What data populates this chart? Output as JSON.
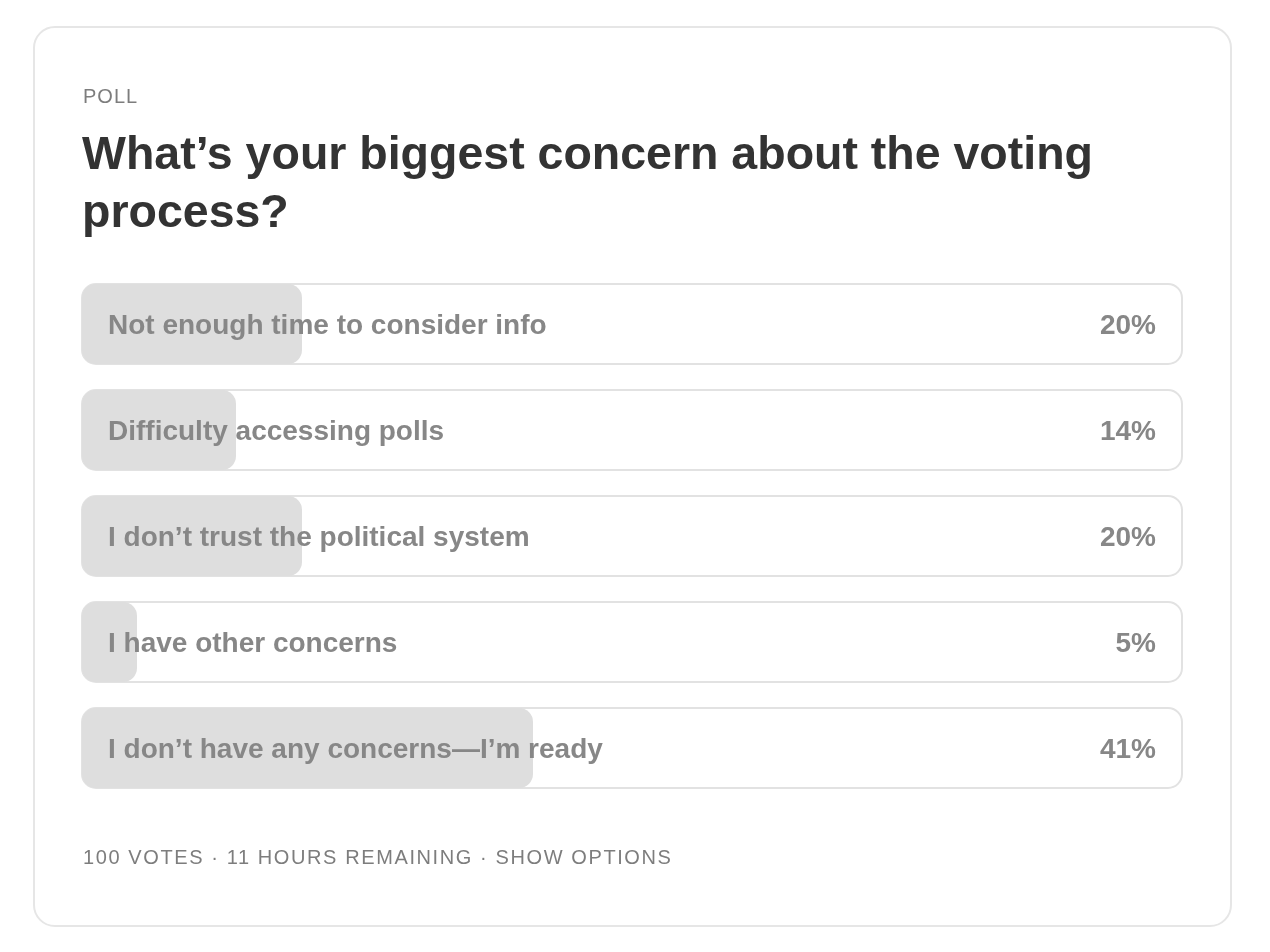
{
  "chart_data": {
    "type": "bar",
    "orientation": "horizontal",
    "title": "What’s your biggest concern about the voting process?",
    "categories": [
      "Not enough time to consider info",
      "Difficulty accessing polls",
      "I don’t trust the political system",
      "I have other concerns",
      "I don’t have any concerns—I’m ready"
    ],
    "values": [
      20,
      14,
      20,
      5,
      41
    ],
    "value_labels": [
      "20%",
      "14%",
      "20%",
      "5%",
      "41%"
    ],
    "color": "#dedede",
    "xlim": [
      0,
      100
    ],
    "annotations": [
      "POLL",
      "100 VOTES · 11 HOURS REMAINING · SHOW OPTIONS"
    ]
  }
}
